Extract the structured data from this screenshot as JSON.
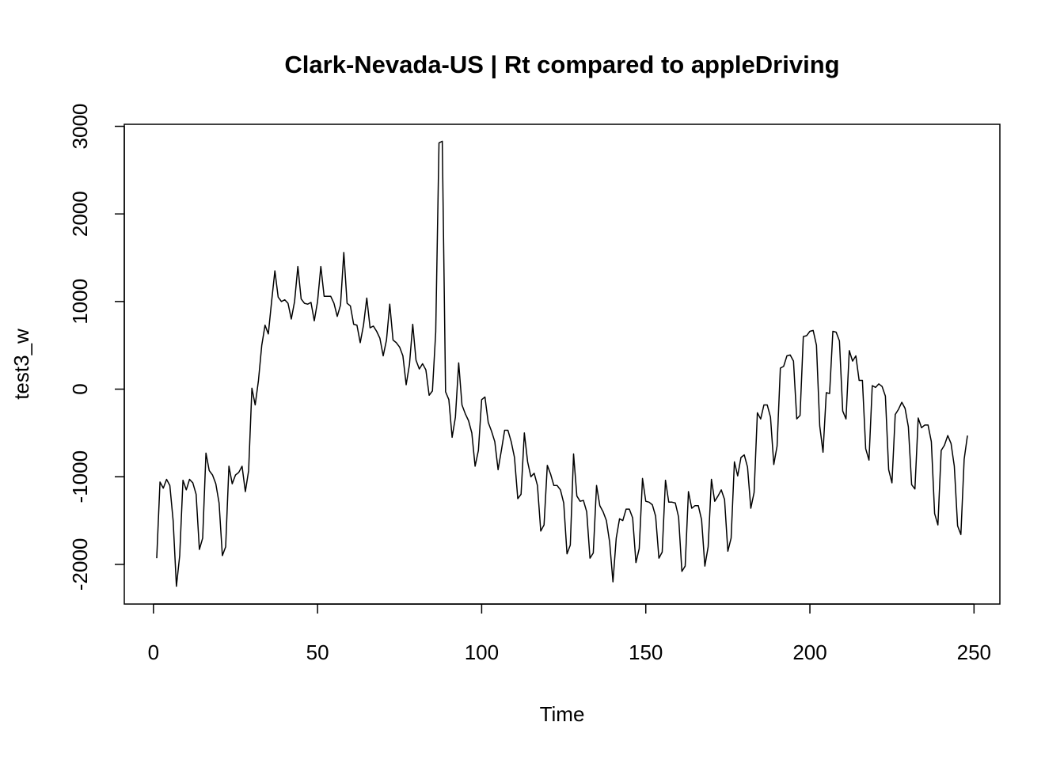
{
  "chart_data": {
    "type": "line",
    "title": "Clark-Nevada-US | Rt compared to appleDriving",
    "xlabel": "Time",
    "ylabel": "test3_w",
    "x": [
      1,
      2,
      3,
      4,
      5,
      6,
      7,
      8,
      9,
      10,
      11,
      12,
      13,
      14,
      15,
      16,
      17,
      18,
      19,
      20,
      21,
      22,
      23,
      24,
      25,
      26,
      27,
      28,
      29,
      30,
      31,
      32,
      33,
      34,
      35,
      36,
      37,
      38,
      39,
      40,
      41,
      42,
      43,
      44,
      45,
      46,
      47,
      48,
      49,
      50,
      51,
      52,
      53,
      54,
      55,
      56,
      57,
      58,
      59,
      60,
      61,
      62,
      63,
      64,
      65,
      66,
      67,
      68,
      69,
      70,
      71,
      72,
      73,
      74,
      75,
      76,
      77,
      78,
      79,
      80,
      81,
      82,
      83,
      84,
      85,
      86,
      87,
      88,
      89,
      90,
      91,
      92,
      93,
      94,
      95,
      96,
      97,
      98,
      99,
      100,
      101,
      102,
      103,
      104,
      105,
      106,
      107,
      108,
      109,
      110,
      111,
      112,
      113,
      114,
      115,
      116,
      117,
      118,
      119,
      120,
      121,
      122,
      123,
      124,
      125,
      126,
      127,
      128,
      129,
      130,
      131,
      132,
      133,
      134,
      135,
      136,
      137,
      138,
      139,
      140,
      141,
      142,
      143,
      144,
      145,
      146,
      147,
      148,
      149,
      150,
      151,
      152,
      153,
      154,
      155,
      156,
      157,
      158,
      159,
      160,
      161,
      162,
      163,
      164,
      165,
      166,
      167,
      168,
      169,
      170,
      171,
      172,
      173,
      174,
      175,
      176,
      177,
      178,
      179,
      180,
      181,
      182,
      183,
      184,
      185,
      186,
      187,
      188,
      189,
      190,
      191,
      192,
      193,
      194,
      195,
      196,
      197,
      198,
      199,
      200,
      201,
      202,
      203,
      204,
      205,
      206,
      207,
      208,
      209,
      210,
      211,
      212,
      213,
      214,
      215,
      216,
      217,
      218,
      219,
      220,
      221,
      222,
      223,
      224,
      225,
      226,
      227,
      228,
      229,
      230,
      231,
      232,
      233,
      234,
      235,
      236,
      237,
      238,
      239,
      240,
      241,
      242,
      243,
      244,
      245,
      246,
      247,
      248
    ],
    "series": [
      {
        "name": "test3_w",
        "color": "#000000",
        "values": [
          -1930,
          -1060,
          -1130,
          -1030,
          -1100,
          -1500,
          -2250,
          -1900,
          -1040,
          -1150,
          -1030,
          -1070,
          -1200,
          -1830,
          -1700,
          -730,
          -930,
          -980,
          -1080,
          -1300,
          -1900,
          -1800,
          -880,
          -1080,
          -980,
          -950,
          -880,
          -1170,
          -930,
          10,
          -180,
          100,
          500,
          730,
          630,
          1000,
          1350,
          1050,
          1000,
          1020,
          980,
          800,
          1000,
          1400,
          1030,
          980,
          970,
          990,
          780,
          1000,
          1400,
          1060,
          1060,
          1060,
          980,
          830,
          960,
          1560,
          980,
          950,
          740,
          730,
          530,
          730,
          1040,
          700,
          720,
          660,
          580,
          380,
          560,
          970,
          560,
          530,
          480,
          380,
          50,
          280,
          740,
          330,
          230,
          290,
          220,
          -70,
          -20,
          650,
          2810,
          2830,
          -30,
          -120,
          -550,
          -320,
          300,
          -180,
          -280,
          -360,
          -500,
          -880,
          -700,
          -120,
          -90,
          -380,
          -480,
          -600,
          -920,
          -700,
          -470,
          -470,
          -600,
          -780,
          -1250,
          -1200,
          -500,
          -830,
          -1000,
          -960,
          -1100,
          -1620,
          -1550,
          -870,
          -970,
          -1100,
          -1100,
          -1150,
          -1300,
          -1880,
          -1780,
          -740,
          -1220,
          -1280,
          -1270,
          -1400,
          -1930,
          -1870,
          -1100,
          -1330,
          -1400,
          -1500,
          -1750,
          -2200,
          -1700,
          -1480,
          -1500,
          -1370,
          -1370,
          -1470,
          -1980,
          -1820,
          -1020,
          -1280,
          -1290,
          -1320,
          -1450,
          -1930,
          -1860,
          -1040,
          -1290,
          -1290,
          -1300,
          -1460,
          -2080,
          -2020,
          -1170,
          -1360,
          -1330,
          -1330,
          -1490,
          -2020,
          -1800,
          -1030,
          -1280,
          -1220,
          -1150,
          -1260,
          -1850,
          -1700,
          -830,
          -990,
          -780,
          -750,
          -890,
          -1360,
          -1180,
          -270,
          -340,
          -180,
          -180,
          -320,
          -860,
          -650,
          240,
          260,
          380,
          390,
          320,
          -340,
          -300,
          600,
          610,
          660,
          670,
          500,
          -420,
          -720,
          -40,
          -50,
          660,
          650,
          550,
          -250,
          -340,
          440,
          320,
          380,
          100,
          100,
          -680,
          -810,
          40,
          20,
          60,
          30,
          -80,
          -920,
          -1070,
          -290,
          -230,
          -150,
          -220,
          -430,
          -1090,
          -1140,
          -330,
          -440,
          -410,
          -410,
          -600,
          -1420,
          -1550,
          -700,
          -640,
          -530,
          -620,
          -880,
          -1560,
          -1660,
          -800,
          -530
        ]
      }
    ],
    "xlim": [
      -8.88,
      257.88
    ],
    "ylim": [
      -2453,
      3023
    ],
    "xticks": [
      0,
      50,
      100,
      150,
      200,
      250
    ],
    "yticks": [
      -2000,
      -1000,
      0,
      1000,
      2000,
      3000
    ]
  }
}
